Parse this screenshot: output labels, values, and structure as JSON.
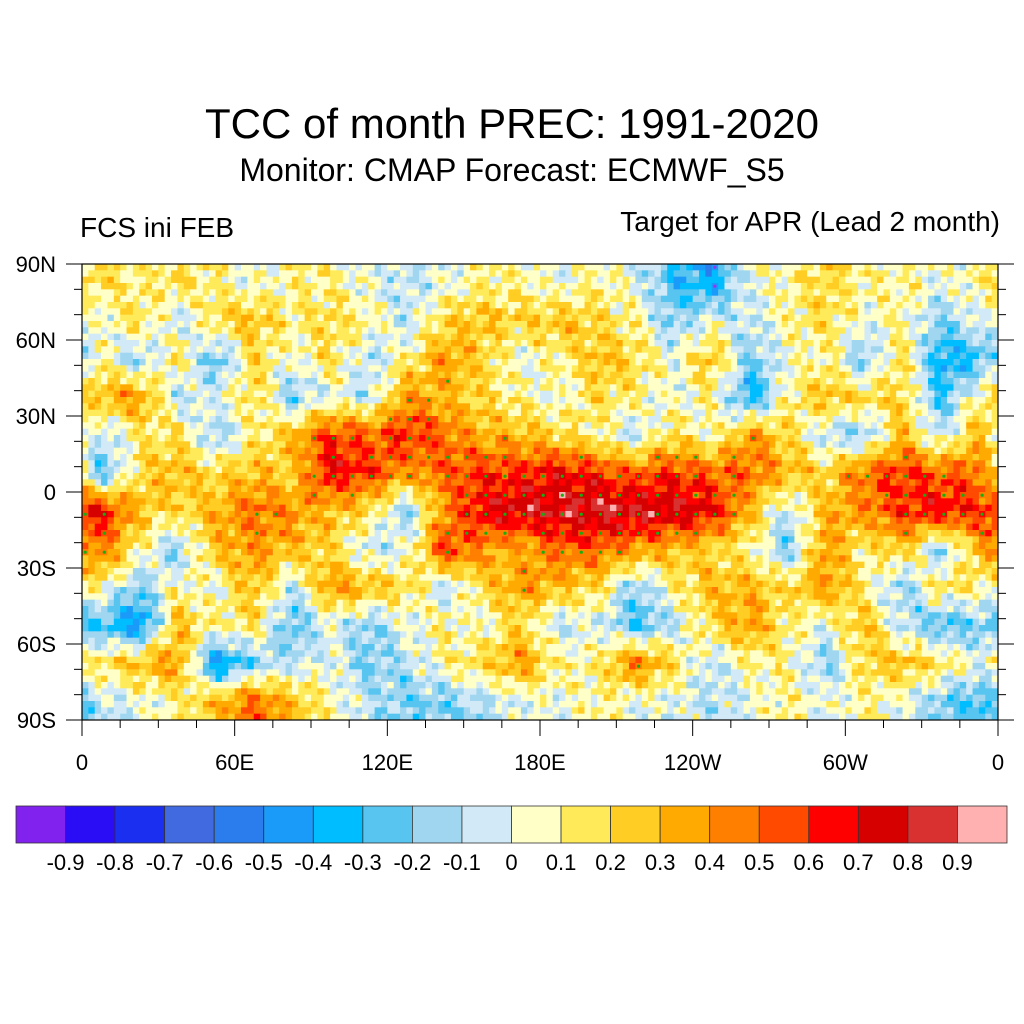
{
  "header": {
    "title": "TCC of month PREC: 1991-2020",
    "subtitle": "Monitor: CMAP   Forecast: ECMWF_S5",
    "left_label": "FCS ini FEB",
    "right_label": "Target for APR (Lead 2 month)"
  },
  "chart_data": {
    "type": "heatmap",
    "title": "TCC of month PREC: 1991-2020",
    "subtitle": "Monitor: CMAP   Forecast: ECMWF_S5",
    "left_string": "FCS ini FEB",
    "right_string": "Target for APR (Lead 2 month)",
    "projection": "cylindrical equidistant, centered 180",
    "x_ticks": [
      "0",
      "60E",
      "120E",
      "180E",
      "120W",
      "60W",
      "0"
    ],
    "x_tick_values": [
      0,
      60,
      120,
      180,
      240,
      300,
      360
    ],
    "y_ticks": [
      "90N",
      "60N",
      "30N",
      "0",
      "30S",
      "60S",
      "90S"
    ],
    "y_tick_values": [
      90,
      60,
      30,
      0,
      -30,
      -60,
      -90
    ],
    "xlim": [
      0,
      360
    ],
    "ylim": [
      -90,
      90
    ],
    "grid_resolution_deg": 15,
    "lon_centers": [
      7.5,
      22.5,
      37.5,
      52.5,
      67.5,
      82.5,
      97.5,
      112.5,
      127.5,
      142.5,
      157.5,
      172.5,
      187.5,
      202.5,
      217.5,
      232.5,
      247.5,
      262.5,
      277.5,
      292.5,
      307.5,
      322.5,
      337.5,
      352.5
    ],
    "lat_centers": [
      82.5,
      67.5,
      52.5,
      37.5,
      22.5,
      7.5,
      -7.5,
      -22.5,
      -37.5,
      -52.5,
      -67.5,
      -82.5
    ],
    "values": [
      [
        0.2,
        0.1,
        0.2,
        0.1,
        0.0,
        0.1,
        0.1,
        0.0,
        -0.1,
        0.0,
        0.1,
        0.1,
        0.0,
        0.1,
        0.0,
        -0.3,
        -0.4,
        0.0,
        0.1,
        0.2,
        0.1,
        0.1,
        0.0,
        0.1
      ],
      [
        0.0,
        0.2,
        -0.1,
        0.2,
        0.3,
        0.1,
        0.2,
        0.1,
        -0.1,
        0.2,
        0.3,
        0.2,
        0.3,
        0.2,
        0.1,
        -0.2,
        0.0,
        -0.1,
        0.1,
        0.2,
        0.0,
        0.1,
        -0.2,
        0.0
      ],
      [
        0.1,
        -0.2,
        0.2,
        -0.3,
        0.2,
        0.0,
        0.2,
        -0.1,
        0.1,
        0.4,
        0.2,
        0.0,
        0.1,
        0.3,
        0.2,
        0.0,
        0.3,
        -0.2,
        0.0,
        0.1,
        -0.2,
        0.2,
        -0.4,
        -0.3
      ],
      [
        0.3,
        0.4,
        -0.1,
        0.0,
        0.2,
        -0.2,
        0.0,
        -0.1,
        0.4,
        0.3,
        0.2,
        0.1,
        0.0,
        0.2,
        0.1,
        0.0,
        0.1,
        -0.4,
        0.1,
        0.3,
        0.2,
        0.2,
        -0.3,
        0.1
      ],
      [
        -0.1,
        0.1,
        0.2,
        -0.2,
        0.1,
        0.3,
        0.6,
        0.5,
        0.6,
        0.5,
        0.3,
        0.3,
        0.2,
        0.1,
        -0.1,
        0.2,
        0.0,
        0.4,
        0.2,
        -0.1,
        -0.2,
        0.3,
        -0.1,
        0.3
      ],
      [
        -0.3,
        0.2,
        0.3,
        0.2,
        0.3,
        0.2,
        0.7,
        0.6,
        0.4,
        0.5,
        0.6,
        0.6,
        0.7,
        0.6,
        0.5,
        0.6,
        0.5,
        0.5,
        0.3,
        0.2,
        0.5,
        0.6,
        0.5,
        0.5
      ],
      [
        0.7,
        0.3,
        0.2,
        0.3,
        0.5,
        0.4,
        0.3,
        0.2,
        -0.2,
        0.4,
        0.7,
        0.8,
        0.8,
        0.85,
        0.8,
        0.8,
        0.7,
        0.3,
        -0.1,
        0.3,
        0.4,
        0.6,
        0.7,
        0.6
      ],
      [
        0.5,
        0.1,
        -0.2,
        0.3,
        0.4,
        0.3,
        0.2,
        -0.1,
        0.0,
        0.6,
        0.4,
        0.3,
        0.5,
        0.5,
        0.4,
        0.3,
        0.2,
        0.1,
        -0.2,
        0.4,
        0.1,
        0.3,
        -0.2,
        0.3
      ],
      [
        0.1,
        -0.2,
        0.1,
        0.0,
        0.3,
        -0.1,
        0.4,
        0.3,
        0.2,
        -0.1,
        0.2,
        0.4,
        0.3,
        0.2,
        -0.2,
        0.1,
        0.3,
        0.3,
        0.2,
        0.4,
        0.1,
        -0.2,
        0.2,
        0.1
      ],
      [
        -0.3,
        -0.5,
        0.3,
        0.1,
        0.2,
        -0.3,
        0.0,
        -0.2,
        0.0,
        0.1,
        0.0,
        0.2,
        -0.1,
        0.0,
        -0.3,
        -0.1,
        0.2,
        0.4,
        0.1,
        0.0,
        0.3,
        -0.1,
        -0.3,
        -0.2
      ],
      [
        0.2,
        0.3,
        0.4,
        -0.5,
        -0.2,
        -0.1,
        0.0,
        -0.2,
        -0.1,
        0.1,
        0.2,
        0.4,
        0.1,
        0.1,
        0.5,
        0.2,
        -0.1,
        0.1,
        0.1,
        -0.2,
        0.2,
        0.3,
        0.2,
        0.0
      ],
      [
        -0.1,
        0.0,
        0.1,
        0.3,
        0.5,
        0.3,
        0.1,
        -0.1,
        -0.2,
        -0.2,
        -0.1,
        0.0,
        0.0,
        0.1,
        0.0,
        0.0,
        -0.1,
        0.0,
        0.1,
        0.0,
        0.1,
        0.0,
        -0.2,
        -0.3
      ]
    ],
    "significance_markers": {
      "positive": "green dots",
      "negative": "purple dots"
    },
    "colorbar": {
      "levels": [
        -0.9,
        -0.8,
        -0.7,
        -0.6,
        -0.5,
        -0.4,
        -0.3,
        -0.2,
        -0.1,
        0,
        0.1,
        0.2,
        0.3,
        0.4,
        0.5,
        0.6,
        0.7,
        0.8,
        0.9
      ],
      "tick_labels": [
        "-0.9",
        "-0.8",
        "-0.7",
        "-0.6",
        "-0.5",
        "-0.4",
        "-0.3",
        "-0.2",
        "-0.1",
        "0",
        "0.1",
        "0.2",
        "0.3",
        "0.4",
        "0.5",
        "0.6",
        "0.7",
        "0.8",
        "0.9"
      ],
      "colors": [
        "#8122ee",
        "#2a0df5",
        "#1a2ff0",
        "#4169e0",
        "#2b7ded",
        "#1a9bfa",
        "#00bdff",
        "#58c4f0",
        "#a0d6f0",
        "#d2eaf7",
        "#ffffc8",
        "#ffeb5a",
        "#ffcd23",
        "#ffaa00",
        "#ff7f00",
        "#ff4a00",
        "#ff0000",
        "#d60000",
        "#d93030",
        "#ffb0b0"
      ]
    }
  }
}
